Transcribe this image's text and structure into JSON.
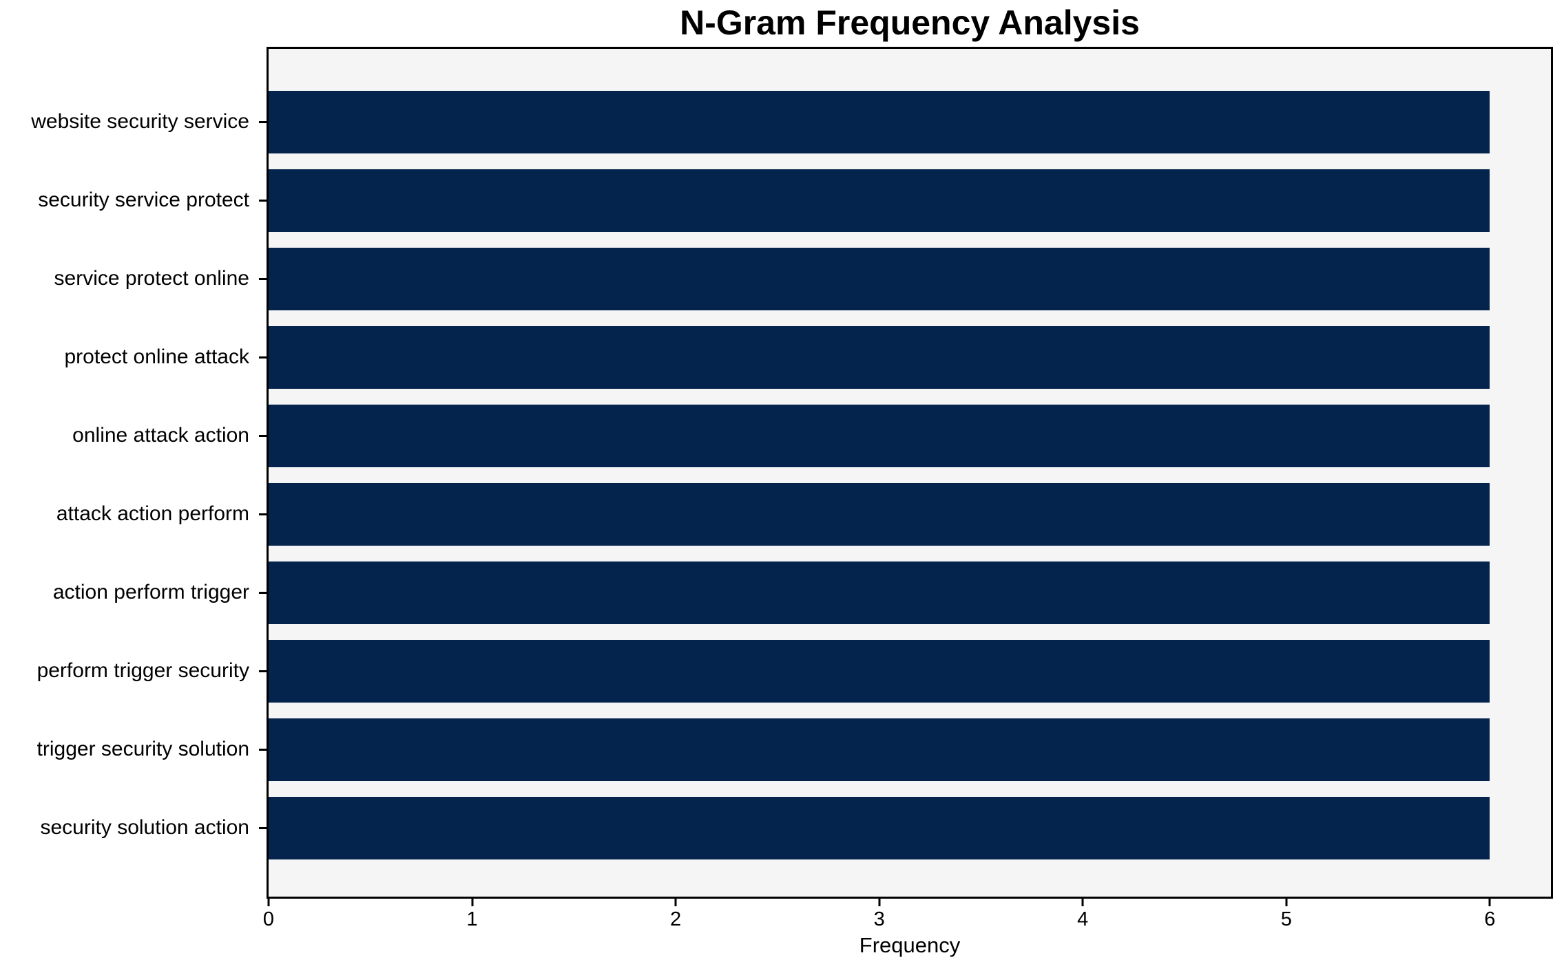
{
  "chart_data": {
    "type": "bar",
    "orientation": "horizontal",
    "title": "N-Gram Frequency Analysis",
    "xlabel": "Frequency",
    "categories": [
      "website security service",
      "security service protect",
      "service protect online",
      "protect online attack",
      "online attack action",
      "attack action perform",
      "action perform trigger",
      "perform trigger security",
      "trigger security solution",
      "security solution action"
    ],
    "values": [
      6,
      6,
      6,
      6,
      6,
      6,
      6,
      6,
      6,
      6
    ],
    "xlim": [
      0,
      6.3
    ],
    "xticks": [
      0,
      1,
      2,
      3,
      4,
      5,
      6
    ],
    "grid": false,
    "legend_position": "none",
    "colors": {
      "bar": "#04234d",
      "plot_background": "#f5f5f5",
      "figure_background": "#ffffff",
      "spine": "#000000",
      "text": "#000000"
    }
  }
}
